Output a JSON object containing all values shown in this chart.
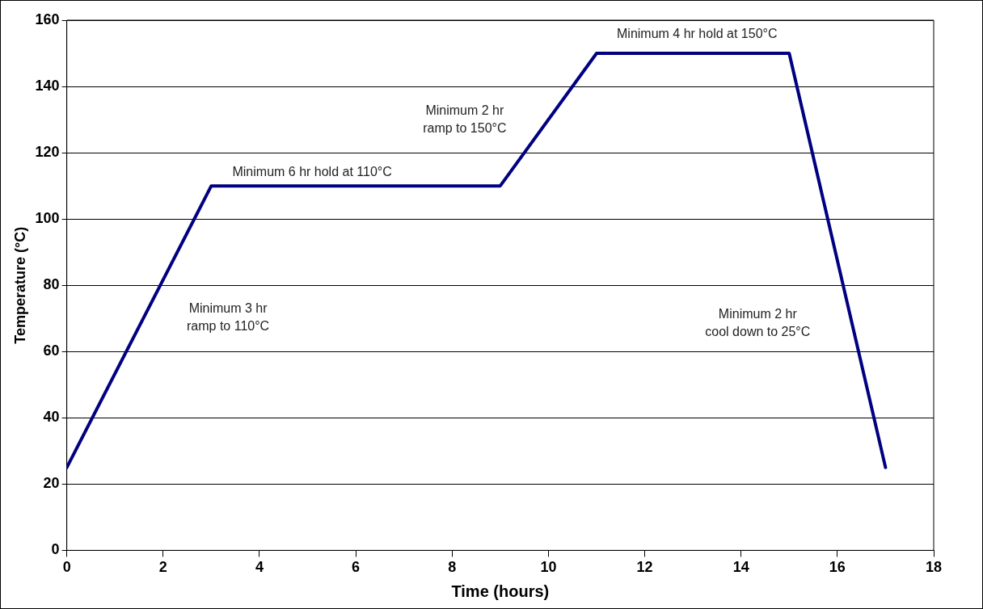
{
  "chart_data": {
    "type": "line",
    "xlabel": "Time (hours)",
    "ylabel": "Temperature (°C)",
    "x": [
      0,
      3,
      9,
      11,
      15,
      17
    ],
    "series": [
      {
        "color": "#000080",
        "values": [
          25,
          110,
          110,
          150,
          150,
          25
        ]
      }
    ],
    "xlim": [
      0,
      18
    ],
    "xticks": [
      0,
      2,
      4,
      6,
      8,
      10,
      12,
      14,
      16,
      18
    ],
    "ylim": [
      0,
      160
    ],
    "yticks": [
      0,
      20,
      40,
      60,
      80,
      100,
      120,
      140,
      160
    ],
    "grid": "y",
    "legend": false,
    "marker": "none",
    "line_style": "solid",
    "annotations": [
      "Minimum 3 hr\nramp to 110°C",
      "Minimum 6 hr hold at 110°C",
      "Minimum 2 hr\nramp to 150°C",
      "Minimum 4 hr hold at 150°C",
      "Minimum 2 hr\ncool down to 25°C"
    ]
  }
}
